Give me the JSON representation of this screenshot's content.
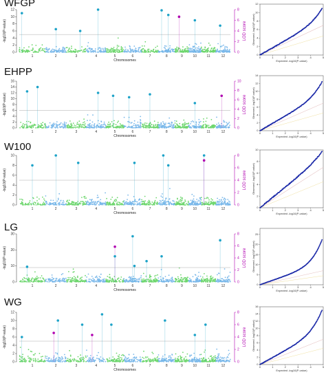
{
  "chart_data": [
    {
      "type": "scatter",
      "trait": "WFGP",
      "xlabel": "Chromosomes",
      "ylabel": "-log10(P-value)",
      "y2label": "LOD score",
      "chromosomes": [
        "1",
        "2",
        "3",
        "4",
        "5",
        "6",
        "7",
        "8",
        "9",
        "10",
        "11",
        "12"
      ],
      "ylim": [
        0,
        12
      ],
      "yticks": [
        0,
        2,
        4,
        6,
        8,
        10,
        12
      ],
      "y2lim": [
        0,
        8
      ],
      "y2ticks": [
        0,
        2,
        4,
        6,
        8
      ],
      "threshold": 5,
      "peaks": [
        {
          "chr": 1,
          "pos": 0.1,
          "y": 11.0,
          "kind": "snp"
        },
        {
          "chr": 2,
          "pos": 0.5,
          "y": 6.5,
          "kind": "snp"
        },
        {
          "chr": 3,
          "pos": 0.7,
          "y": 6.0,
          "kind": "snp"
        },
        {
          "chr": 4,
          "pos": 0.6,
          "y": 12.5,
          "kind": "snp"
        },
        {
          "chr": 8,
          "pos": 0.2,
          "y": 11.8,
          "kind": "snp"
        },
        {
          "chr": 8,
          "pos": 0.6,
          "y": 10.5,
          "kind": "snp"
        },
        {
          "chr": 9,
          "pos": 0.3,
          "y": 10.0,
          "kind": "lod"
        },
        {
          "chr": 10,
          "pos": 0.5,
          "y": 9.0,
          "kind": "snp"
        },
        {
          "chr": 12,
          "pos": 0.3,
          "y": 7.5,
          "kind": "snp"
        }
      ],
      "qq": {
        "xticks": [
          0,
          1,
          2,
          3,
          4,
          5
        ],
        "yticks": [
          0,
          2,
          4,
          6,
          8,
          10,
          12
        ],
        "xmax": 5,
        "ymax": 12,
        "lambda_top": 11.5,
        "inflation": 1.0
      }
    },
    {
      "type": "scatter",
      "trait": "EHPP",
      "xlabel": "Chromosomes",
      "ylabel": "-log10(P-value)",
      "y2label": "LOD score",
      "chromosomes": [
        "1",
        "2",
        "3",
        "4",
        "5",
        "6",
        "7",
        "8",
        "9",
        "10",
        "11",
        "12"
      ],
      "ylim": [
        0,
        16
      ],
      "yticks": [
        0,
        2,
        4,
        6,
        8,
        10,
        12,
        14,
        16
      ],
      "y2lim": [
        0,
        10
      ],
      "y2ticks": [
        0,
        2,
        4,
        6,
        8,
        10
      ],
      "threshold": 6,
      "peaks": [
        {
          "chr": 1,
          "pos": 0.3,
          "y": 12.5,
          "kind": "snp"
        },
        {
          "chr": 1,
          "pos": 0.7,
          "y": 14.0,
          "kind": "snp"
        },
        {
          "chr": 4,
          "pos": 0.6,
          "y": 12.0,
          "kind": "snp"
        },
        {
          "chr": 5,
          "pos": 0.4,
          "y": 11.0,
          "kind": "snp"
        },
        {
          "chr": 6,
          "pos": 0.3,
          "y": 10.5,
          "kind": "snp"
        },
        {
          "chr": 7,
          "pos": 0.5,
          "y": 11.5,
          "kind": "snp"
        },
        {
          "chr": 10,
          "pos": 0.5,
          "y": 8.5,
          "kind": "snp"
        },
        {
          "chr": 12,
          "pos": 0.4,
          "y": 11.0,
          "kind": "lod"
        }
      ],
      "qq": {
        "xticks": [
          0,
          1,
          2,
          3,
          4,
          5
        ],
        "yticks": [
          0,
          2,
          4,
          6,
          8,
          10,
          12,
          14
        ],
        "xmax": 5,
        "ymax": 14,
        "lambda_top": 13.0,
        "inflation": 1.1
      }
    },
    {
      "type": "scatter",
      "trait": "W100",
      "xlabel": "Chromosomes",
      "ylabel": "-log10(P-value)",
      "y2label": "LOD score",
      "chromosomes": [
        "1",
        "2",
        "3",
        "4",
        "5",
        "6",
        "7",
        "8",
        "9",
        "10",
        "11",
        "12"
      ],
      "ylim": [
        0,
        10
      ],
      "yticks": [
        0,
        2,
        4,
        6,
        8,
        10
      ],
      "y2lim": [
        0,
        8
      ],
      "y2ticks": [
        0,
        2,
        4,
        6,
        8
      ],
      "threshold": 5,
      "peaks": [
        {
          "chr": 1,
          "pos": 0.5,
          "y": 8.0,
          "kind": "snp"
        },
        {
          "chr": 2,
          "pos": 0.5,
          "y": 10.0,
          "kind": "snp"
        },
        {
          "chr": 3,
          "pos": 0.6,
          "y": 8.5,
          "kind": "snp"
        },
        {
          "chr": 6,
          "pos": 0.6,
          "y": 8.5,
          "kind": "snp"
        },
        {
          "chr": 8,
          "pos": 0.3,
          "y": 11.0,
          "kind": "snp"
        },
        {
          "chr": 8,
          "pos": 0.6,
          "y": 8.0,
          "kind": "snp"
        },
        {
          "chr": 11,
          "pos": 0.2,
          "y": 10.5,
          "kind": "snp"
        },
        {
          "chr": 11,
          "pos": 0.2,
          "y": 9.0,
          "kind": "lod"
        }
      ],
      "qq": {
        "xticks": [
          0,
          1,
          2,
          3,
          4,
          5
        ],
        "yticks": [
          0,
          2,
          4,
          6,
          8,
          10
        ],
        "xmax": 5,
        "ymax": 10,
        "lambda_top": 10.0,
        "inflation": 1.05
      }
    },
    {
      "type": "scatter",
      "trait": "LG",
      "xlabel": "Chromosomes",
      "ylabel": "-log10(P-value)",
      "y2label": "LOD score",
      "chromosomes": [
        "1",
        "2",
        "3",
        "4",
        "5",
        "6",
        "7",
        "8",
        "9",
        "10",
        "11",
        "12"
      ],
      "ylim": [
        0,
        30
      ],
      "yticks": [
        0,
        10,
        20,
        30
      ],
      "y2lim": [
        0,
        8
      ],
      "y2ticks": [
        0,
        2,
        4,
        6,
        8
      ],
      "threshold": 9,
      "peaks": [
        {
          "chr": 1,
          "pos": 0.3,
          "y": 9.5,
          "kind": "snp"
        },
        {
          "chr": 5,
          "pos": 0.5,
          "y": 22.0,
          "kind": "lod"
        },
        {
          "chr": 5,
          "pos": 0.5,
          "y": 16.0,
          "kind": "snp"
        },
        {
          "chr": 6,
          "pos": 0.5,
          "y": 28.5,
          "kind": "snp"
        },
        {
          "chr": 6,
          "pos": 0.6,
          "y": 10.0,
          "kind": "snp"
        },
        {
          "chr": 7,
          "pos": 0.3,
          "y": 13.0,
          "kind": "snp"
        },
        {
          "chr": 8,
          "pos": 0.2,
          "y": 16.0,
          "kind": "snp"
        },
        {
          "chr": 12,
          "pos": 0.3,
          "y": 26.0,
          "kind": "snp"
        }
      ],
      "qq": {
        "xticks": [
          0,
          1,
          2,
          3,
          4,
          5
        ],
        "yticks": [
          0,
          5,
          10,
          15,
          20,
          25
        ],
        "xmax": 5,
        "ymax": 28,
        "lambda_top": 24.0,
        "inflation": 1.3
      }
    },
    {
      "type": "scatter",
      "trait": "WG",
      "xlabel": "Chromosomes",
      "ylabel": "-log10(P-value)",
      "y2label": "LOD score",
      "chromosomes": [
        "1",
        "2",
        "3",
        "4",
        "5",
        "6",
        "7",
        "8",
        "9",
        "10",
        "11",
        "12"
      ],
      "ylim": [
        0,
        12
      ],
      "yticks": [
        0,
        2,
        4,
        6,
        8,
        10,
        12
      ],
      "y2lim": [
        0,
        8
      ],
      "y2ticks": [
        0,
        2,
        4,
        6,
        8
      ],
      "threshold": 5,
      "peaks": [
        {
          "chr": 1,
          "pos": 0.1,
          "y": 6.0,
          "kind": "snp"
        },
        {
          "chr": 2,
          "pos": 0.4,
          "y": 7.0,
          "kind": "lod"
        },
        {
          "chr": 2,
          "pos": 0.6,
          "y": 10.0,
          "kind": "snp"
        },
        {
          "chr": 3,
          "pos": 0.8,
          "y": 9.0,
          "kind": "snp"
        },
        {
          "chr": 4,
          "pos": 0.3,
          "y": 6.5,
          "kind": "lod"
        },
        {
          "chr": 4,
          "pos": 0.8,
          "y": 11.5,
          "kind": "snp"
        },
        {
          "chr": 5,
          "pos": 0.3,
          "y": 9.0,
          "kind": "snp"
        },
        {
          "chr": 8,
          "pos": 0.4,
          "y": 10.0,
          "kind": "snp"
        },
        {
          "chr": 10,
          "pos": 0.5,
          "y": 6.5,
          "kind": "snp"
        },
        {
          "chr": 11,
          "pos": 0.3,
          "y": 9.0,
          "kind": "snp"
        }
      ],
      "qq": {
        "xticks": [
          0,
          1,
          2,
          3,
          4,
          5
        ],
        "yticks": [
          0,
          2,
          4,
          6,
          8,
          10,
          12,
          14,
          16
        ],
        "xmax": 5,
        "ymax": 16,
        "lambda_top": 16.0,
        "inflation": 1.15
      }
    }
  ],
  "colors": {
    "odd_chr": "#6dd66d",
    "even_chr": "#7ab8ea",
    "threshold": "#aaaaaa",
    "peak_snp": "#1ea3c8",
    "peak_lod": "#b000b0",
    "lod_axis": "#b000b0",
    "qq_points": "#1c2aa8",
    "qq_line": "#e6c3c3",
    "qq_line2": "#f0e0a0"
  },
  "qq_labels": {
    "x": "Expected -log10(P-value)",
    "y": "Observed -log10(P-value)"
  }
}
